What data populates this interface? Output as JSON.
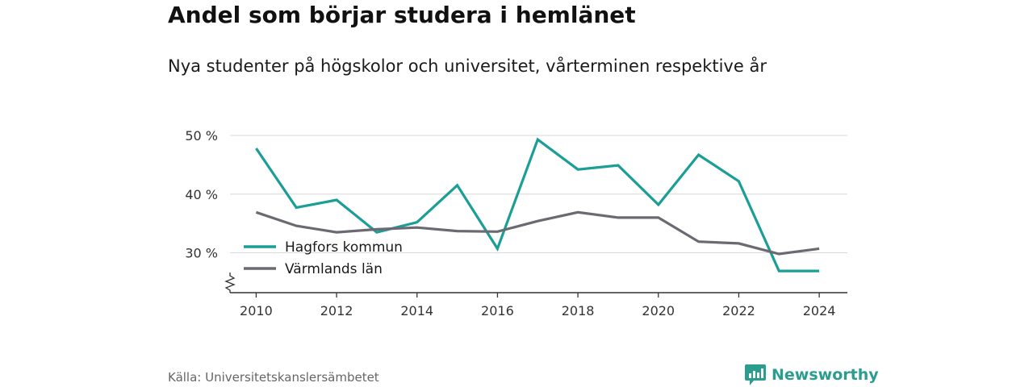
{
  "header": {
    "title": "Andel som börjar studera i hemlänet",
    "subtitle": "Nya studenter på högskolor och universitet, vårterminen respektive år"
  },
  "footer": {
    "source": "Källa: Universitetskanslersämbetet",
    "brand": "Newsworthy"
  },
  "colors": {
    "hagfors": "#1a9e96",
    "varmland": "#6b6a72",
    "grid": "#d9d9d9",
    "brand": "#2a9d8f"
  },
  "chart_data": {
    "type": "line",
    "title": "Andel som börjar studera i hemlänet",
    "subtitle": "Nya studenter på högskolor och universitet, vårterminen respektive år",
    "x": [
      2010,
      2011,
      2012,
      2013,
      2014,
      2015,
      2016,
      2017,
      2018,
      2019,
      2020,
      2021,
      2022,
      2023,
      2024
    ],
    "series": [
      {
        "name": "Hagfors kommun",
        "color": "#1a9e96",
        "values": [
          47.8,
          37.7,
          39.0,
          33.5,
          35.2,
          41.5,
          30.7,
          49.3,
          44.2,
          44.9,
          38.2,
          46.7,
          42.2,
          26.9,
          26.9
        ]
      },
      {
        "name": "Värmlands län",
        "color": "#6b6a72",
        "values": [
          36.9,
          34.6,
          33.5,
          34.0,
          34.3,
          33.7,
          33.6,
          35.4,
          36.9,
          36.0,
          36.0,
          31.9,
          31.6,
          29.8,
          30.7
        ]
      }
    ],
    "yticks": [
      30,
      40,
      50
    ],
    "ytick_labels": [
      "30 %",
      "40 %",
      "50 %"
    ],
    "xticks": [
      2010,
      2012,
      2014,
      2016,
      2018,
      2020,
      2022,
      2024
    ],
    "xtick_labels": [
      "2010",
      "2012",
      "2014",
      "2016",
      "2018",
      "2020",
      "2022",
      "2024"
    ],
    "ylim": [
      23.2,
      50
    ],
    "xlim": [
      2009.35,
      2024.7
    ],
    "axis_break": true,
    "grid": "horizontal",
    "legend_position": "bottom-left"
  }
}
